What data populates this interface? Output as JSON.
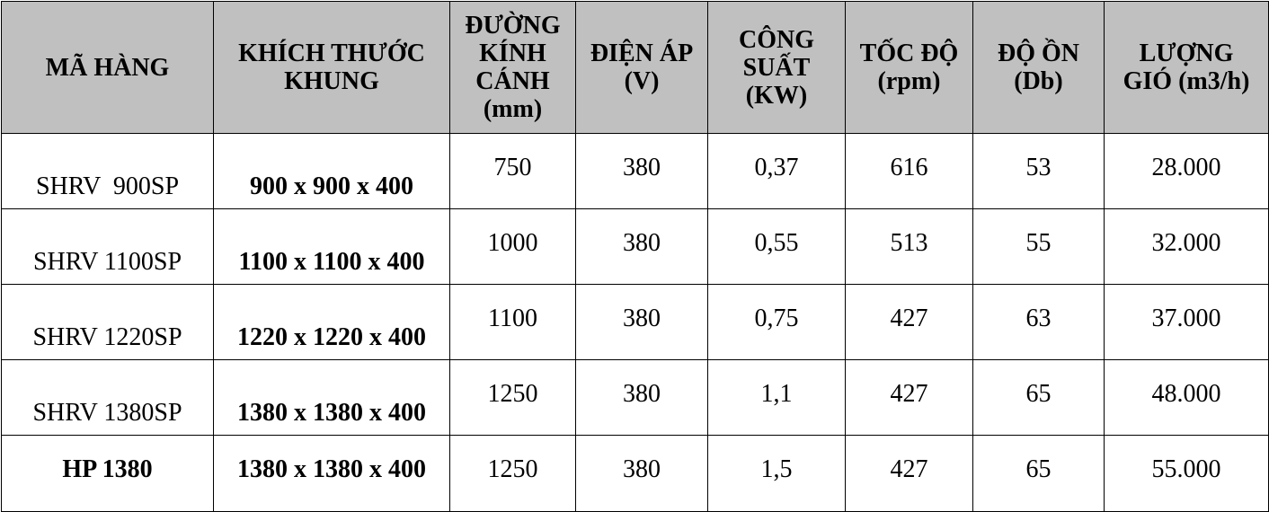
{
  "table": {
    "header": [
      [
        "MÃ HÀNG"
      ],
      [
        "KHÍCH THƯỚC",
        "KHUNG"
      ],
      [
        "ĐƯỜNG",
        "KÍNH",
        "CÁNH",
        "(mm)"
      ],
      [
        "ĐIỆN ÁP",
        "(V)"
      ],
      [
        "CÔNG",
        "SUẤT",
        "(KW)"
      ],
      [
        "TỐC ĐỘ",
        "(rpm)"
      ],
      [
        "ĐỘ ỒN",
        "(Db)"
      ],
      [
        "LƯỢNG",
        "GIÓ (m3/h)"
      ]
    ],
    "rows": [
      [
        "SHRV  900SP",
        "900 x 900 x 400",
        "750",
        "380",
        "0,37",
        "616",
        "53",
        "28.000"
      ],
      [
        "SHRV 1100SP",
        "1100 x 1100 x 400",
        "1000",
        "380",
        "0,55",
        "513",
        "55",
        "32.000"
      ],
      [
        "SHRV 1220SP",
        "1220 x 1220 x 400",
        "1100",
        "380",
        "0,75",
        "427",
        "63",
        "37.000"
      ],
      [
        "SHRV 1380SP",
        "1380 x 1380 x 400",
        "1250",
        "380",
        "1,1",
        "427",
        "65",
        "48.000"
      ],
      [
        "HP 1380",
        "1380 x 1380 x 400",
        "1250",
        "380",
        "1,5",
        "427",
        "65",
        "55.000"
      ]
    ]
  }
}
